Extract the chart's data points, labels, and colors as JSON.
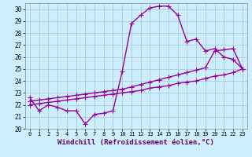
{
  "bg_color": "#cceeff",
  "grid_color": "#aaccdd",
  "line_color": "#990099",
  "marker": "+",
  "markersize": 4,
  "linewidth": 1.0,
  "xlabel": "Windchill (Refroidissement éolien,°C)",
  "xlabel_fontsize": 6.5,
  "xlim": [
    -0.5,
    23.5
  ],
  "ylim": [
    20,
    30.5
  ],
  "yticks": [
    20,
    21,
    22,
    23,
    24,
    25,
    26,
    27,
    28,
    29,
    30
  ],
  "xticks": [
    0,
    1,
    2,
    3,
    4,
    5,
    6,
    7,
    8,
    9,
    10,
    11,
    12,
    13,
    14,
    15,
    16,
    17,
    18,
    19,
    20,
    21,
    22,
    23
  ],
  "series1_x": [
    0,
    1,
    2,
    3,
    4,
    5,
    6,
    7,
    8,
    9,
    10,
    11,
    12,
    13,
    14,
    15,
    16,
    17,
    18,
    19,
    20,
    21,
    22,
    23
  ],
  "series1_y": [
    22.6,
    21.5,
    22.0,
    21.8,
    21.5,
    21.5,
    20.4,
    21.2,
    21.3,
    21.5,
    24.8,
    28.8,
    29.5,
    30.1,
    30.25,
    30.25,
    29.5,
    27.3,
    27.5,
    26.5,
    26.7,
    26.0,
    25.8,
    25.0
  ],
  "series2_x": [
    0,
    1,
    2,
    3,
    4,
    5,
    6,
    7,
    8,
    9,
    10,
    11,
    12,
    13,
    14,
    15,
    16,
    17,
    18,
    19,
    20,
    21,
    22,
    23
  ],
  "series2_y": [
    22.3,
    22.4,
    22.5,
    22.6,
    22.7,
    22.8,
    22.9,
    23.0,
    23.1,
    23.2,
    23.3,
    23.5,
    23.7,
    23.9,
    24.1,
    24.3,
    24.5,
    24.7,
    24.9,
    25.1,
    26.5,
    26.6,
    26.7,
    25.0
  ],
  "series3_x": [
    0,
    1,
    2,
    3,
    4,
    5,
    6,
    7,
    8,
    9,
    10,
    11,
    12,
    13,
    14,
    15,
    16,
    17,
    18,
    19,
    20,
    21,
    22,
    23
  ],
  "series3_y": [
    22.0,
    22.1,
    22.2,
    22.3,
    22.4,
    22.5,
    22.6,
    22.7,
    22.8,
    22.9,
    23.0,
    23.1,
    23.2,
    23.4,
    23.5,
    23.6,
    23.8,
    23.9,
    24.0,
    24.2,
    24.4,
    24.5,
    24.7,
    25.0
  ]
}
